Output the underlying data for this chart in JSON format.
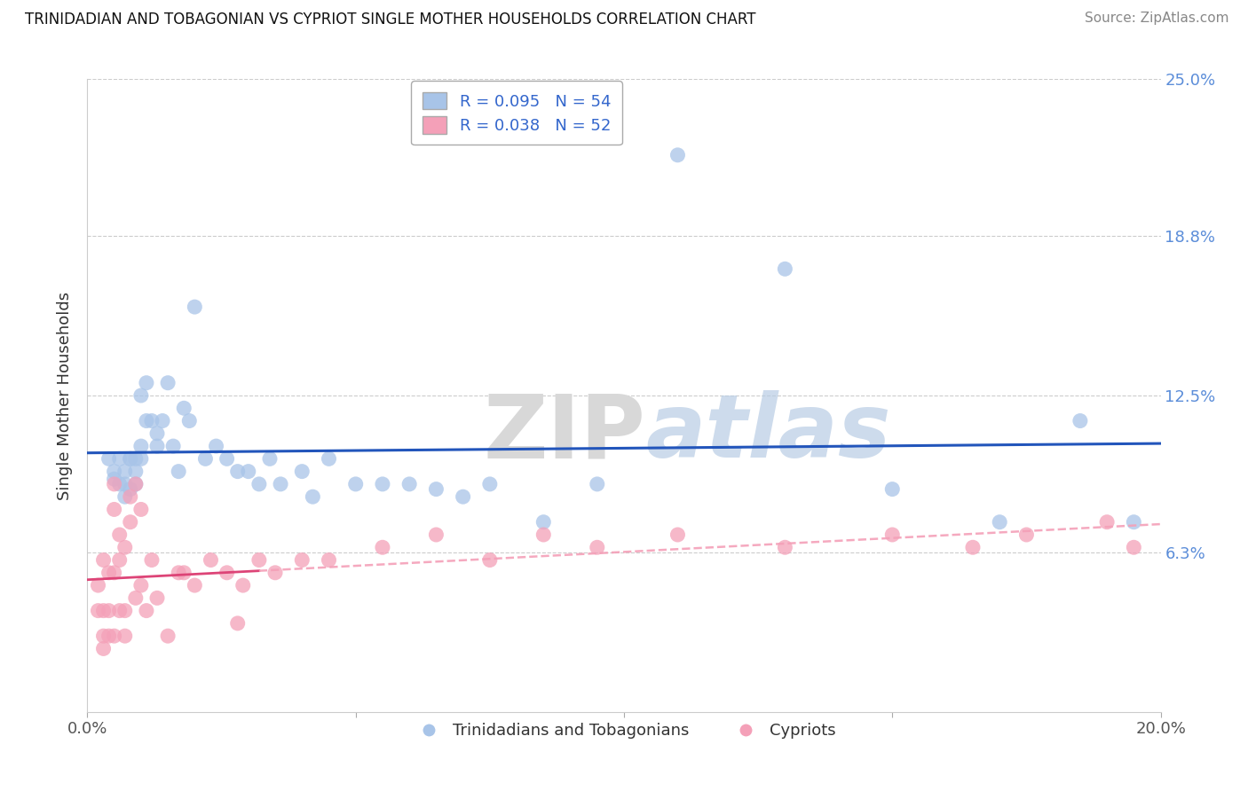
{
  "title": "TRINIDADIAN AND TOBAGONIAN VS CYPRIOT SINGLE MOTHER HOUSEHOLDS CORRELATION CHART",
  "source": "Source: ZipAtlas.com",
  "ylabel": "Single Mother Households",
  "xlim": [
    0.0,
    0.2
  ],
  "ylim": [
    0.0,
    0.25
  ],
  "xtick_values": [
    0.0,
    0.05,
    0.1,
    0.15,
    0.2
  ],
  "xticklabels": [
    "0.0%",
    "",
    "",
    "",
    "20.0%"
  ],
  "ytick_labels": [
    "6.3%",
    "12.5%",
    "18.8%",
    "25.0%"
  ],
  "ytick_values": [
    0.063,
    0.125,
    0.188,
    0.25
  ],
  "blue_R": 0.095,
  "blue_N": 54,
  "pink_R": 0.038,
  "pink_N": 52,
  "blue_color": "#a8c4e8",
  "pink_color": "#f4a0b8",
  "blue_line_color": "#2255bb",
  "pink_line_color": "#dd4477",
  "pink_dash_color": "#f4a0b8",
  "legend_label_blue": "Trinidadians and Tobagonians",
  "legend_label_pink": "Cypriots",
  "blue_x": [
    0.004,
    0.005,
    0.005,
    0.006,
    0.006,
    0.007,
    0.007,
    0.007,
    0.008,
    0.008,
    0.008,
    0.009,
    0.009,
    0.009,
    0.01,
    0.01,
    0.01,
    0.011,
    0.011,
    0.012,
    0.013,
    0.013,
    0.014,
    0.015,
    0.016,
    0.017,
    0.018,
    0.019,
    0.02,
    0.022,
    0.024,
    0.026,
    0.028,
    0.03,
    0.032,
    0.034,
    0.036,
    0.04,
    0.042,
    0.045,
    0.05,
    0.055,
    0.06,
    0.065,
    0.07,
    0.075,
    0.085,
    0.095,
    0.11,
    0.13,
    0.15,
    0.17,
    0.185,
    0.195
  ],
  "blue_y": [
    0.1,
    0.095,
    0.092,
    0.1,
    0.09,
    0.085,
    0.09,
    0.095,
    0.088,
    0.1,
    0.1,
    0.09,
    0.095,
    0.1,
    0.125,
    0.105,
    0.1,
    0.13,
    0.115,
    0.115,
    0.11,
    0.105,
    0.115,
    0.13,
    0.105,
    0.095,
    0.12,
    0.115,
    0.16,
    0.1,
    0.105,
    0.1,
    0.095,
    0.095,
    0.09,
    0.1,
    0.09,
    0.095,
    0.085,
    0.1,
    0.09,
    0.09,
    0.09,
    0.088,
    0.085,
    0.09,
    0.075,
    0.09,
    0.22,
    0.175,
    0.088,
    0.075,
    0.115,
    0.075
  ],
  "pink_x": [
    0.002,
    0.002,
    0.003,
    0.003,
    0.003,
    0.003,
    0.004,
    0.004,
    0.004,
    0.005,
    0.005,
    0.005,
    0.005,
    0.006,
    0.006,
    0.006,
    0.007,
    0.007,
    0.007,
    0.008,
    0.008,
    0.009,
    0.009,
    0.01,
    0.01,
    0.011,
    0.012,
    0.013,
    0.015,
    0.017,
    0.02,
    0.023,
    0.026,
    0.029,
    0.032,
    0.035,
    0.04,
    0.045,
    0.055,
    0.065,
    0.075,
    0.085,
    0.095,
    0.11,
    0.13,
    0.15,
    0.165,
    0.175,
    0.19,
    0.195,
    0.018,
    0.028
  ],
  "pink_y": [
    0.05,
    0.04,
    0.06,
    0.04,
    0.03,
    0.025,
    0.055,
    0.04,
    0.03,
    0.09,
    0.08,
    0.055,
    0.03,
    0.07,
    0.06,
    0.04,
    0.065,
    0.04,
    0.03,
    0.085,
    0.075,
    0.09,
    0.045,
    0.08,
    0.05,
    0.04,
    0.06,
    0.045,
    0.03,
    0.055,
    0.05,
    0.06,
    0.055,
    0.05,
    0.06,
    0.055,
    0.06,
    0.06,
    0.065,
    0.07,
    0.06,
    0.07,
    0.065,
    0.07,
    0.065,
    0.07,
    0.065,
    0.07,
    0.075,
    0.065,
    0.055,
    0.035
  ]
}
